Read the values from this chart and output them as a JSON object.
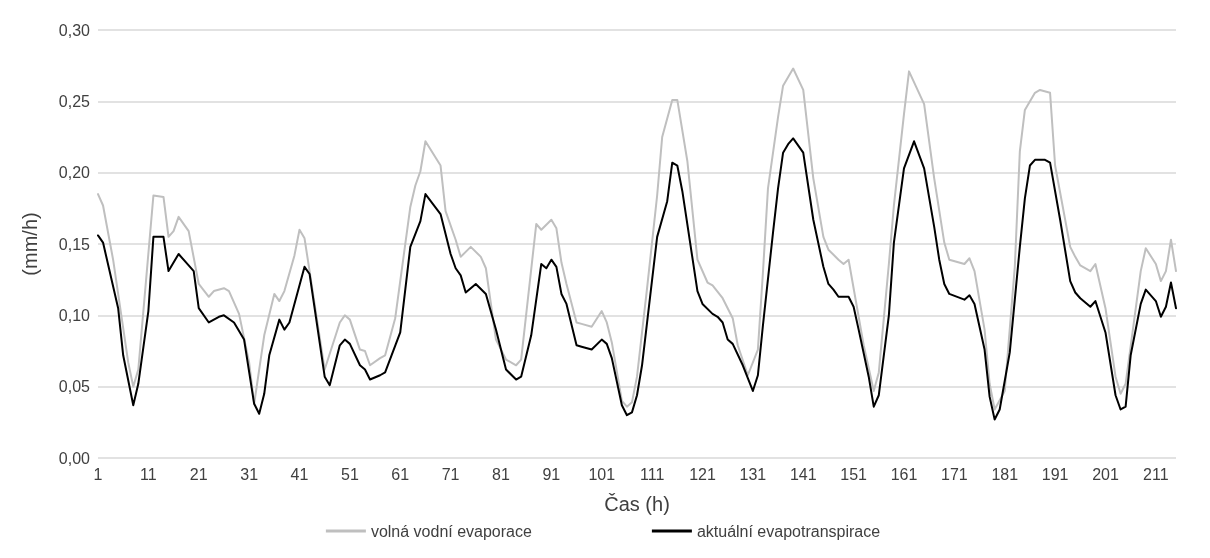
{
  "chart_data": {
    "type": "line",
    "xlabel": "Čas (h)",
    "ylabel": "(mm/h)",
    "xlim": [
      1,
      215
    ],
    "xticks": [
      1,
      11,
      21,
      31,
      41,
      51,
      61,
      71,
      81,
      91,
      101,
      111,
      121,
      131,
      141,
      151,
      161,
      171,
      181,
      191,
      201,
      211
    ],
    "ylim": [
      0,
      0.3
    ],
    "yticks": [
      {
        "value": 0,
        "label": "0,00"
      },
      {
        "value": 0.05,
        "label": "0,05"
      },
      {
        "value": 0.1,
        "label": "0,10"
      },
      {
        "value": 0.15,
        "label": "0,15"
      },
      {
        "value": 0.2,
        "label": "0,20"
      },
      {
        "value": 0.25,
        "label": "0,25"
      },
      {
        "value": 0.3,
        "label": "0,30"
      }
    ],
    "grid": "y",
    "legend": "bottom",
    "marker": "none",
    "line_style": "solid",
    "series": [
      {
        "name": "volná vodní evaporace",
        "color": "#bfbfbf",
        "x": [
          1,
          2,
          4,
          7,
          8,
          9,
          12,
          14,
          15,
          16,
          17,
          19,
          21,
          23,
          24,
          26,
          27,
          29,
          31,
          32,
          34,
          36,
          37,
          38,
          40,
          41,
          42,
          46,
          49,
          50,
          51,
          53,
          54,
          55,
          57,
          58,
          60,
          63,
          64,
          65,
          66,
          69,
          70,
          72,
          73,
          75,
          77,
          78,
          80,
          82,
          84,
          85,
          88,
          89,
          91,
          92,
          93,
          94,
          96,
          97,
          99,
          101,
          102,
          103,
          105,
          106,
          107,
          108,
          110,
          112,
          113,
          115,
          116,
          118,
          120,
          122,
          123,
          125,
          127,
          128,
          130,
          132,
          133,
          134,
          136,
          137,
          139,
          141,
          143,
          145,
          146,
          148,
          149,
          150,
          151,
          153,
          155,
          156,
          158,
          159,
          161,
          162,
          165,
          167,
          169,
          170,
          173,
          174,
          175,
          177,
          178,
          179,
          181,
          183,
          184,
          185,
          187,
          188,
          190,
          191,
          194,
          195,
          196,
          198,
          199,
          201,
          203,
          204,
          205,
          208,
          209,
          211,
          212,
          213,
          214,
          215
        ],
        "values": [
          0.185,
          0.177,
          0.139,
          0.067,
          0.05,
          0.062,
          0.184,
          0.183,
          0.155,
          0.159,
          0.169,
          0.159,
          0.122,
          0.113,
          0.117,
          0.119,
          0.117,
          0.101,
          0.067,
          0.038,
          0.086,
          0.115,
          0.11,
          0.117,
          0.142,
          0.16,
          0.154,
          0.062,
          0.095,
          0.1,
          0.097,
          0.076,
          0.075,
          0.065,
          0.07,
          0.072,
          0.098,
          0.176,
          0.191,
          0.201,
          0.222,
          0.205,
          0.173,
          0.153,
          0.141,
          0.148,
          0.141,
          0.133,
          0.083,
          0.069,
          0.065,
          0.069,
          0.164,
          0.16,
          0.167,
          0.161,
          0.137,
          0.122,
          0.095,
          0.094,
          0.092,
          0.103,
          0.095,
          0.081,
          0.04,
          0.036,
          0.039,
          0.057,
          0.119,
          0.184,
          0.225,
          0.251,
          0.251,
          0.208,
          0.139,
          0.123,
          0.121,
          0.112,
          0.098,
          0.079,
          0.058,
          0.076,
          0.13,
          0.189,
          0.239,
          0.261,
          0.273,
          0.258,
          0.196,
          0.155,
          0.146,
          0.139,
          0.136,
          0.139,
          0.119,
          0.079,
          0.047,
          0.06,
          0.136,
          0.177,
          0.241,
          0.271,
          0.248,
          0.196,
          0.151,
          0.139,
          0.136,
          0.14,
          0.131,
          0.09,
          0.052,
          0.034,
          0.047,
          0.134,
          0.215,
          0.244,
          0.256,
          0.258,
          0.256,
          0.205,
          0.148,
          0.141,
          0.135,
          0.131,
          0.136,
          0.105,
          0.057,
          0.045,
          0.052,
          0.131,
          0.147,
          0.136,
          0.124,
          0.131,
          0.153,
          0.131
        ]
      },
      {
        "name": "aktuální evapotranspirace",
        "color": "#000000",
        "x": [
          1,
          2,
          5,
          6,
          8,
          9,
          11,
          12,
          14,
          15,
          17,
          19,
          20,
          21,
          23,
          25,
          26,
          28,
          30,
          32,
          33,
          34,
          35,
          37,
          38,
          39,
          42,
          43,
          46,
          47,
          49,
          50,
          51,
          53,
          54,
          55,
          57,
          58,
          61,
          63,
          65,
          66,
          69,
          71,
          72,
          73,
          74,
          76,
          78,
          80,
          82,
          84,
          85,
          87,
          89,
          90,
          91,
          92,
          93,
          94,
          96,
          97,
          99,
          101,
          102,
          103,
          105,
          106,
          107,
          108,
          109,
          112,
          114,
          115,
          116,
          117,
          120,
          121,
          123,
          124,
          125,
          126,
          127,
          129,
          131,
          132,
          133,
          135,
          136,
          137,
          138,
          139,
          141,
          143,
          145,
          146,
          147,
          148,
          150,
          151,
          152,
          154,
          155,
          156,
          158,
          159,
          161,
          163,
          165,
          167,
          168,
          169,
          170,
          173,
          174,
          175,
          177,
          178,
          179,
          180,
          182,
          184,
          185,
          186,
          187,
          189,
          190,
          192,
          194,
          195,
          196,
          198,
          199,
          201,
          203,
          204,
          205,
          206,
          208,
          209,
          211,
          212,
          213,
          214,
          215
        ],
        "values": [
          0.156,
          0.151,
          0.105,
          0.072,
          0.037,
          0.052,
          0.103,
          0.155,
          0.155,
          0.131,
          0.143,
          0.135,
          0.131,
          0.105,
          0.095,
          0.099,
          0.1,
          0.095,
          0.083,
          0.038,
          0.031,
          0.045,
          0.072,
          0.097,
          0.09,
          0.095,
          0.134,
          0.129,
          0.057,
          0.051,
          0.079,
          0.083,
          0.08,
          0.065,
          0.062,
          0.055,
          0.058,
          0.06,
          0.088,
          0.148,
          0.166,
          0.185,
          0.171,
          0.143,
          0.133,
          0.128,
          0.116,
          0.122,
          0.115,
          0.09,
          0.062,
          0.055,
          0.057,
          0.086,
          0.136,
          0.133,
          0.139,
          0.134,
          0.115,
          0.108,
          0.079,
          0.078,
          0.076,
          0.083,
          0.08,
          0.07,
          0.037,
          0.03,
          0.032,
          0.044,
          0.065,
          0.155,
          0.18,
          0.207,
          0.205,
          0.187,
          0.117,
          0.108,
          0.101,
          0.099,
          0.095,
          0.083,
          0.08,
          0.065,
          0.047,
          0.058,
          0.093,
          0.158,
          0.189,
          0.214,
          0.22,
          0.224,
          0.214,
          0.167,
          0.134,
          0.122,
          0.118,
          0.113,
          0.113,
          0.106,
          0.09,
          0.057,
          0.036,
          0.044,
          0.1,
          0.151,
          0.203,
          0.222,
          0.203,
          0.162,
          0.139,
          0.122,
          0.115,
          0.111,
          0.114,
          0.108,
          0.076,
          0.043,
          0.027,
          0.034,
          0.074,
          0.148,
          0.182,
          0.205,
          0.209,
          0.209,
          0.207,
          0.167,
          0.124,
          0.116,
          0.112,
          0.106,
          0.11,
          0.088,
          0.044,
          0.034,
          0.036,
          0.072,
          0.108,
          0.118,
          0.11,
          0.099,
          0.106,
          0.123,
          0.105
        ]
      }
    ]
  }
}
